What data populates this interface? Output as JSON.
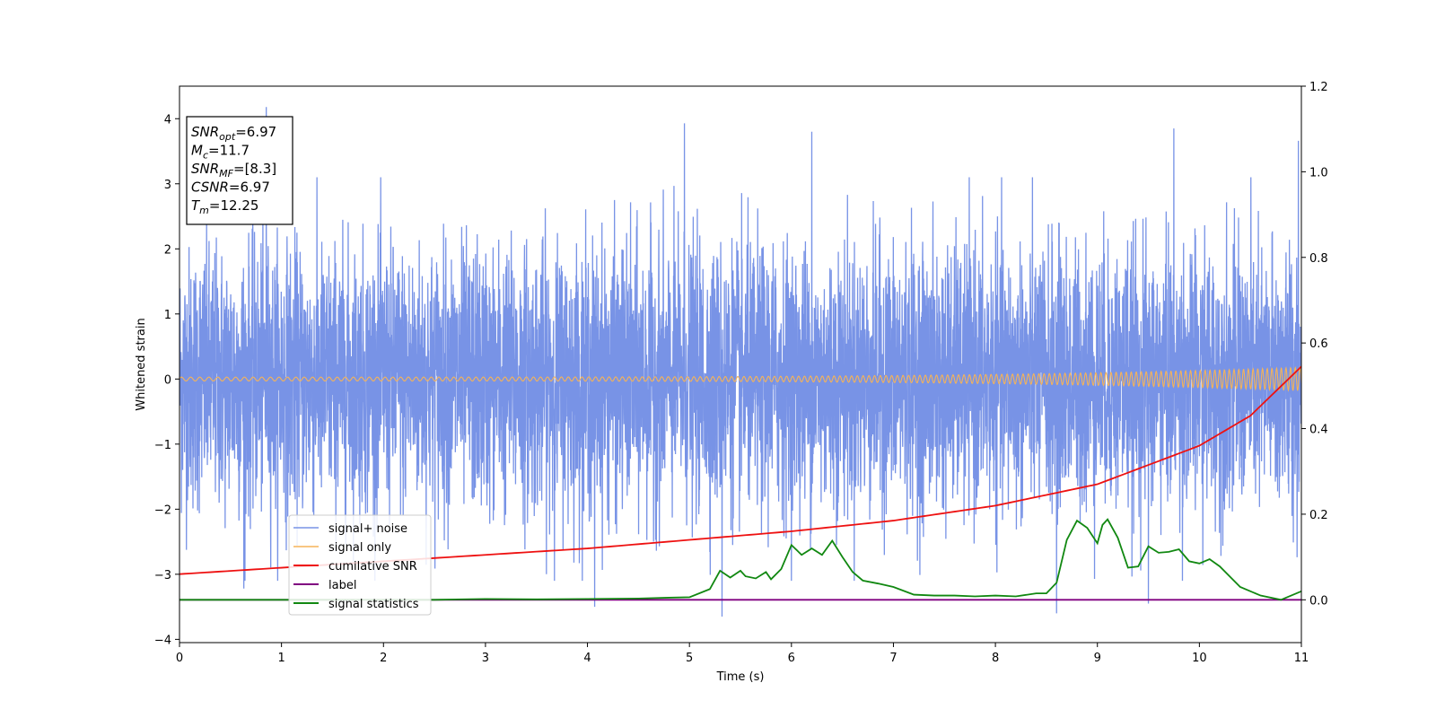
{
  "chart_data": {
    "type": "line",
    "xlabel": "Time (s)",
    "ylabel": "Whitened strain",
    "xlim": [
      0,
      11
    ],
    "ylim": [
      -4.05,
      4.5
    ],
    "y2lim": [
      -0.1,
      1.2
    ],
    "grid": false,
    "legend_position": "lower-left",
    "x_ticks": [
      "0",
      "1",
      "2",
      "3",
      "4",
      "5",
      "6",
      "7",
      "8",
      "9",
      "10",
      "11"
    ],
    "y_ticks": [
      "−4",
      "−3",
      "−2",
      "−1",
      "0",
      "1",
      "2",
      "3",
      "4"
    ],
    "y2_ticks": [
      "0.0",
      "0.2",
      "0.4",
      "0.6",
      "0.8",
      "1.0",
      "1.2"
    ],
    "info_box": [
      {
        "base": "SNR",
        "sub": "opt",
        "value": "=6.97"
      },
      {
        "base": "M",
        "sub": "c",
        "value": "=11.7"
      },
      {
        "base": "SNR",
        "sub": "MF",
        "value": "=[8.3]"
      },
      {
        "base": "CSNR",
        "sub": "",
        "value": "=6.97"
      },
      {
        "base": "T",
        "sub": "m",
        "value": "=12.25"
      }
    ],
    "series": [
      {
        "name": "signal+ noise",
        "axis": "left",
        "color": "#7893e6",
        "kind": "noise",
        "amplitude_std": 1.0,
        "peaks": [
          [
            0.85,
            4.18
          ],
          [
            4.95,
            3.93
          ],
          [
            6.2,
            3.8
          ],
          [
            9.75,
            3.85
          ],
          [
            10.97,
            3.66
          ],
          [
            8.6,
            -3.6
          ],
          [
            5.32,
            -3.65
          ],
          [
            9.5,
            -3.45
          ],
          [
            4.07,
            -3.5
          ],
          [
            0.63,
            -3.22
          ]
        ]
      },
      {
        "name": "signal only",
        "axis": "left",
        "color": "#f5b358",
        "kind": "chirp",
        "amp_start": 0.03,
        "amp_end": 0.18
      },
      {
        "name": "cumilative SNR",
        "axis": "right",
        "color": "#ee1111",
        "x": [
          0,
          1,
          2,
          3,
          4,
          5,
          6,
          7,
          8,
          9,
          10,
          10.5,
          11
        ],
        "y": [
          0.06,
          0.075,
          0.09,
          0.105,
          0.12,
          0.14,
          0.16,
          0.185,
          0.22,
          0.27,
          0.36,
          0.43,
          0.545
        ]
      },
      {
        "name": "label",
        "axis": "right",
        "color": "#800080",
        "x": [
          0,
          11
        ],
        "y": [
          0,
          0
        ]
      },
      {
        "name": "signal statistics",
        "axis": "right",
        "color": "#118811",
        "x": [
          0,
          0.5,
          1,
          1.5,
          2,
          2.5,
          3,
          3.5,
          4,
          4.5,
          4.8,
          5,
          5.2,
          5.3,
          5.4,
          5.5,
          5.55,
          5.65,
          5.75,
          5.8,
          5.9,
          6.0,
          6.1,
          6.2,
          6.3,
          6.4,
          6.5,
          6.6,
          6.7,
          6.85,
          7.0,
          7.2,
          7.4,
          7.6,
          7.8,
          8.0,
          8.2,
          8.4,
          8.5,
          8.6,
          8.7,
          8.8,
          8.9,
          9.0,
          9.05,
          9.1,
          9.2,
          9.3,
          9.4,
          9.5,
          9.6,
          9.7,
          9.8,
          9.9,
          10.0,
          10.1,
          10.2,
          10.4,
          10.6,
          10.8,
          11.0
        ],
        "y": [
          0.0,
          0.0,
          0.0,
          0.0,
          0.0,
          0.0,
          0.002,
          0.001,
          0.002,
          0.003,
          0.005,
          0.006,
          0.025,
          0.068,
          0.052,
          0.068,
          0.055,
          0.05,
          0.065,
          0.048,
          0.072,
          0.128,
          0.105,
          0.12,
          0.105,
          0.138,
          0.1,
          0.065,
          0.045,
          0.038,
          0.03,
          0.012,
          0.01,
          0.01,
          0.008,
          0.01,
          0.008,
          0.015,
          0.015,
          0.04,
          0.14,
          0.185,
          0.168,
          0.132,
          0.175,
          0.188,
          0.145,
          0.075,
          0.078,
          0.125,
          0.11,
          0.112,
          0.118,
          0.09,
          0.085,
          0.095,
          0.078,
          0.03,
          0.01,
          0.0,
          0.02
        ]
      }
    ]
  }
}
